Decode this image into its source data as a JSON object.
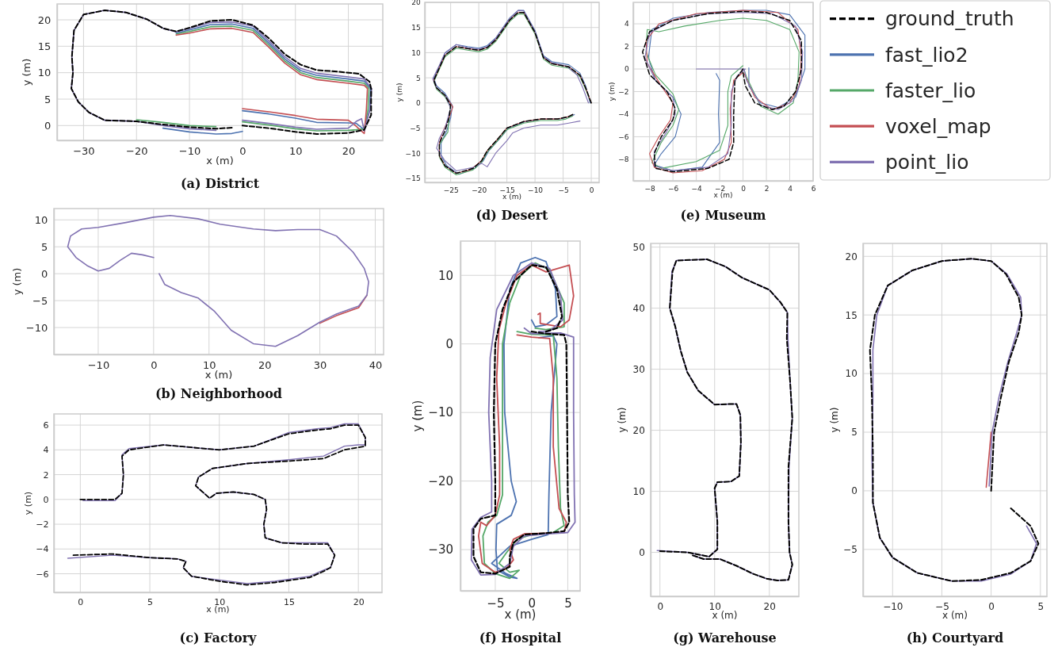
{
  "chart_data": [
    {
      "type": "line",
      "title": "(a) District",
      "xlabel": "x (m)",
      "ylabel": "y (m)",
      "xlim": [
        -35,
        26.5
      ],
      "ylim": [
        -2.8,
        23
      ],
      "xticks": [
        -30,
        -20,
        -10,
        0,
        10,
        20
      ],
      "yticks": [
        0,
        5,
        10,
        15,
        20
      ],
      "grid": true,
      "series": [
        {
          "color": "#000000",
          "line_style": "dashed",
          "x": [
            0,
            5,
            10,
            14,
            20,
            23,
            24.3,
            24.3,
            24,
            22,
            18,
            14,
            11,
            8,
            5,
            2,
            -2,
            -6,
            -10,
            -12.5,
            -15,
            -18,
            -22,
            -26,
            -30,
            -31.8,
            -32.2,
            -32,
            -32.3,
            -31,
            -29,
            -26,
            -20,
            -15,
            -10,
            -5,
            -2
          ],
          "values": [
            0,
            -0.5,
            -1.2,
            -1.6,
            -1.4,
            -0.8,
            2,
            7,
            8.3,
            9.8,
            10.2,
            10.5,
            11.5,
            13.5,
            16.5,
            19,
            20,
            19.8,
            18.5,
            17.8,
            18.4,
            20.1,
            21.4,
            21.8,
            21,
            18,
            13,
            10,
            7,
            4.5,
            2.5,
            1,
            0.8,
            0.2,
            -0.3,
            -0.6,
            -0.4
          ]
        },
        {
          "color": "#4c72b0",
          "x": [
            0,
            5,
            10,
            14,
            20,
            21.5,
            23,
            24,
            24.2,
            23,
            20,
            14,
            11,
            8,
            5,
            2,
            -2,
            -6,
            -10,
            -12.5,
            null,
            null,
            null,
            null,
            null,
            null,
            null,
            null,
            null,
            null,
            null,
            null,
            null,
            -15,
            -10,
            -5,
            -2,
            0
          ],
          "values": [
            2.8,
            2.2,
            1.4,
            0.6,
            0.5,
            0.4,
            -0.8,
            3,
            7,
            8.4,
            8.8,
            9.5,
            10.4,
            12.6,
            15.6,
            18.4,
            19.2,
            19.1,
            18.1,
            17.5,
            null,
            null,
            null,
            null,
            null,
            null,
            null,
            null,
            null,
            null,
            null,
            null,
            null,
            -0.5,
            -1.2,
            -1.6,
            -1.5,
            -1.1
          ]
        },
        {
          "color": "#55a868",
          "x": [
            0,
            5,
            10,
            14,
            20,
            21.5,
            23,
            23.7,
            23.9,
            23,
            20,
            14,
            11,
            8,
            5,
            2,
            -2,
            -6,
            -10,
            -12.5,
            null,
            null,
            null,
            null,
            null,
            null,
            null,
            null,
            null,
            null,
            null,
            null,
            -20,
            -15,
            -10,
            -5
          ],
          "values": [
            0.7,
            0.1,
            -0.6,
            -1,
            -0.9,
            -0.8,
            -0.6,
            3,
            7,
            8,
            8.4,
            9.1,
            10,
            12.2,
            15.2,
            18,
            18.8,
            18.7,
            17.8,
            17.3,
            null,
            null,
            null,
            null,
            null,
            null,
            null,
            null,
            null,
            null,
            null,
            null,
            1.1,
            0.6,
            0,
            -0.2
          ]
        },
        {
          "color": "#c44e52",
          "x": [
            0,
            5,
            10,
            14,
            20,
            21,
            23,
            23.4,
            23.6,
            23,
            20,
            14,
            11,
            8,
            5,
            2,
            -2,
            -6,
            -10,
            -12.5
          ],
          "values": [
            3.2,
            2.6,
            1.9,
            1.2,
            1,
            0.3,
            -1.5,
            3,
            7,
            7.6,
            8,
            8.7,
            9.6,
            11.8,
            14.8,
            17.6,
            18.4,
            18.3,
            17.5,
            17.1
          ]
        },
        {
          "color": "#8172b2",
          "x": [
            0,
            5,
            10,
            14,
            20,
            21.5,
            22.5,
            23,
            24.1,
            24.4,
            23,
            20,
            14,
            11,
            8,
            5,
            2,
            -2,
            -6,
            -10,
            -12.5,
            -15,
            -18,
            -22,
            -26,
            -30,
            -31.8,
            -32.2,
            -32,
            -32.3,
            -31,
            -29,
            -26,
            -20,
            -15,
            -10,
            -5
          ],
          "values": [
            1,
            0.4,
            -0.3,
            -0.7,
            -0.5,
            0.8,
            1.3,
            -1,
            3,
            7,
            8.8,
            9.2,
            9.9,
            10.8,
            13,
            16,
            18.8,
            19.6,
            19.5,
            18.4,
            17.7,
            18.4,
            20.1,
            21.4,
            21.8,
            21,
            18,
            13,
            10,
            7,
            4.5,
            2.5,
            1,
            0.8,
            0,
            -0.6,
            -0.9
          ]
        }
      ]
    },
    {
      "type": "line",
      "title": "(b) Neighborhood",
      "xlabel": "x (m)",
      "ylabel": "y (m)",
      "xlim": [
        -18,
        41.5
      ],
      "ylim": [
        -15,
        12.1
      ],
      "xticks": [
        -10,
        0,
        10,
        20,
        30,
        40
      ],
      "yticks": [
        -10,
        -5,
        0,
        5,
        10
      ],
      "grid": true,
      "series": [
        {
          "color": "#c44e52",
          "x": [
            38.5,
            37,
            33,
            30
          ],
          "values": [
            -4,
            -6.3,
            -7.8,
            -9.2
          ]
        },
        {
          "color": "#8172b2",
          "x": [
            0,
            -2,
            -4,
            -6,
            -8,
            -10,
            -12,
            -14,
            -15.5,
            -15,
            -13,
            -10,
            -5,
            0,
            3,
            8,
            12,
            18,
            22,
            26,
            30,
            33,
            36,
            38,
            38.8,
            38.5,
            37,
            33,
            30,
            26,
            22,
            18,
            14,
            11,
            8,
            5,
            2,
            1
          ],
          "values": [
            3,
            3.5,
            3.8,
            2.5,
            1,
            0.5,
            1.5,
            3,
            5,
            7,
            8.3,
            8.6,
            9.5,
            10.5,
            10.8,
            10.2,
            9.2,
            8.3,
            8,
            8.2,
            8.2,
            7,
            4,
            1,
            -1.5,
            -4,
            -6,
            -7.5,
            -9,
            -11.5,
            -13.5,
            -13,
            -10.5,
            -7,
            -4.5,
            -3.5,
            -2,
            0
          ]
        }
      ]
    },
    {
      "type": "line",
      "title": "(c) Factory",
      "xlabel": "x (m)",
      "ylabel": "y (m)",
      "xlim": [
        -1.9,
        21.7
      ],
      "ylim": [
        -7.5,
        6.9
      ],
      "xticks": [
        0,
        5,
        10,
        15,
        20
      ],
      "yticks": [
        -6,
        -4,
        -2,
        0,
        2,
        4,
        6
      ],
      "grid": true,
      "series": [
        {
          "color": "#000000",
          "line_style": "dashed",
          "x": [
            0,
            2.5,
            3,
            3.1,
            3,
            3.5,
            6,
            8,
            10,
            12.5,
            15,
            17,
            18,
            19,
            20,
            20.5,
            20.5,
            20,
            19,
            17.5,
            15,
            12,
            9.5,
            8.5,
            8.3,
            9.3,
            9.8,
            11,
            12.5,
            13.3,
            13.4,
            13.2,
            13.3,
            14.5,
            16,
            17.8,
            18.3,
            18,
            17.5,
            16.5,
            14,
            12,
            10,
            8,
            7.4,
            7.6,
            7,
            5,
            2.3,
            -0.5
          ],
          "values": [
            0,
            0,
            0.5,
            2,
            3.5,
            4,
            4.4,
            4.2,
            4,
            4.3,
            5.3,
            5.6,
            5.7,
            6,
            6,
            5,
            4.3,
            4.2,
            4,
            3.3,
            3.1,
            2.9,
            2.5,
            1.8,
            1.1,
            0.1,
            0.5,
            0.6,
            0.4,
            0,
            -0.8,
            -2,
            -3.1,
            -3.5,
            -3.6,
            -3.6,
            -4.5,
            -5.5,
            -5.8,
            -6.3,
            -6.7,
            -6.9,
            -6.6,
            -6.2,
            -5.5,
            -5,
            -4.8,
            -4.7,
            -4.4,
            -4.5
          ]
        },
        {
          "color": "#8172b2",
          "x": [
            0.2,
            2.5,
            3,
            3.1,
            3,
            3.5,
            6,
            8,
            10,
            12.5,
            15,
            17,
            18,
            19,
            20,
            20.5,
            20.5,
            20,
            19,
            17.5,
            15,
            12,
            9.5,
            8.5,
            8.3,
            9.3,
            9.8,
            11,
            12.5,
            13.3,
            13.4,
            13.2,
            13.3,
            14.5,
            16,
            17.8,
            18.3,
            18,
            17.5,
            16.5,
            14,
            12,
            10,
            8,
            7.4,
            7.6,
            7,
            5,
            2.3,
            -0.9
          ],
          "values": [
            -0.1,
            -0.1,
            0.5,
            2,
            3.6,
            4.1,
            4.4,
            4.2,
            4,
            4.3,
            5.4,
            5.7,
            5.8,
            6.1,
            6.1,
            5,
            4.4,
            4.4,
            4.3,
            3.5,
            3.2,
            2.9,
            2.5,
            1.8,
            1.1,
            0.1,
            0.5,
            0.6,
            0.4,
            0,
            -0.8,
            -2,
            -3.1,
            -3.5,
            -3.5,
            -3.5,
            -4.5,
            -5.5,
            -5.7,
            -6.2,
            -6.6,
            -6.8,
            -6.5,
            -6.2,
            -5.5,
            -5,
            -4.8,
            -4.7,
            -4.5,
            -4.75
          ]
        }
      ]
    },
    {
      "type": "line",
      "title": "(d) Desert",
      "xlabel": "x (m)",
      "ylabel": "y (m)",
      "xlim": [
        -29.6,
        1.4
      ],
      "ylim": [
        -15.8,
        20
      ],
      "xticks": [
        -25,
        -20,
        -15,
        -10,
        -5,
        0
      ],
      "yticks": [
        -15,
        -10,
        -5,
        0,
        5,
        10,
        15,
        20
      ],
      "grid": true,
      "series": [
        {
          "color": "#000000",
          "line_style": "dashed",
          "x": [
            0,
            -1,
            -2,
            -4,
            -7,
            -8.5,
            -10,
            -12,
            -13,
            -14.5,
            -17,
            -18.5,
            -20,
            -22,
            -24,
            -26,
            -27,
            -28,
            -27.5,
            -26,
            -25,
            -25.3,
            -26,
            -27,
            -27,
            -26,
            -24,
            -21,
            -19.5,
            -18.5,
            -16.5,
            -15,
            -12,
            -9,
            -6,
            -4,
            -3.3
          ],
          "values": [
            0,
            3,
            5.5,
            7.2,
            7.8,
            9,
            14,
            18,
            18,
            16.5,
            12.5,
            11,
            10.5,
            10.8,
            11.2,
            9.5,
            7,
            4.5,
            3,
            1.5,
            -0.5,
            -3,
            -5.5,
            -8,
            -10.5,
            -12.5,
            -14,
            -13,
            -11.5,
            -9.5,
            -7,
            -5,
            -3.7,
            -3.2,
            -3.2,
            -2.7,
            -2.3
          ]
        },
        {
          "color": "#4c72b0",
          "x": [
            -0.2,
            -1,
            -2,
            -4,
            -7,
            -8.5,
            -10,
            -12,
            -13,
            -14.5,
            -17,
            -18.5,
            -20,
            -22,
            -24,
            -26,
            -27,
            -28,
            -27.5,
            -26,
            -24.7,
            -25,
            -25.7,
            -26.7,
            -26.7,
            -25.7,
            -23.5,
            -20.7,
            -19.2,
            -18.2,
            -16.2,
            -14.7,
            -11.7,
            -8.7,
            -5.7,
            -3.7,
            -3
          ],
          "values": [
            0,
            3.4,
            5.9,
            7.6,
            8.2,
            9.4,
            14.4,
            18.4,
            18.4,
            16.9,
            12.9,
            11.4,
            10.9,
            11.2,
            11.6,
            9.9,
            7.4,
            4.9,
            3.4,
            1.9,
            -0.5,
            -3,
            -5.5,
            -8,
            -10.5,
            -12.5,
            -14.2,
            -13,
            -11.5,
            -9.5,
            -7,
            -5,
            -3.7,
            -3.2,
            -3.2,
            -2.7,
            -2.3
          ]
        },
        {
          "color": "#55a868",
          "x": [
            0,
            -1,
            -2,
            -4,
            -7,
            -8.5,
            -10,
            -12,
            -13,
            -14.5,
            -17,
            -18.5,
            -20,
            -22,
            -24,
            -26,
            -27,
            -28,
            -27.5,
            -26,
            -25,
            -25.3,
            -25.5,
            -27,
            -27,
            -26,
            -24,
            -21,
            -19.5,
            -18.5,
            -16.5,
            -15,
            -12,
            -9,
            -6,
            -4.5,
            -3.3
          ],
          "values": [
            0,
            2.7,
            5.2,
            6.9,
            7.5,
            8.7,
            13.7,
            17.7,
            17.7,
            16.2,
            12.2,
            10.7,
            10.2,
            10.5,
            10.9,
            9.2,
            6.7,
            4.2,
            2.7,
            1.2,
            -0.8,
            -3.3,
            -5.8,
            -8.3,
            -10.8,
            -12.8,
            -14.3,
            -13.3,
            -11.8,
            -9.8,
            -7.3,
            -5.3,
            -4,
            -3.5,
            -3.5,
            -3.2,
            -2.6
          ]
        },
        {
          "color": "#c44e52",
          "x": [
            0,
            -1,
            -2,
            -4,
            -7,
            -8.5,
            -10,
            -12,
            -13,
            -14.5,
            -17,
            -18.5,
            -20,
            -22,
            -24,
            -26,
            -27,
            -28,
            -27.5,
            -26,
            -24.6,
            -25.3,
            -26.5,
            -27,
            -27,
            -26,
            -24,
            -21.5,
            -19.5,
            -18.5,
            -16.5,
            -15,
            -12,
            -9,
            -6,
            -4,
            -3.3
          ],
          "values": [
            0,
            3,
            5.5,
            7.2,
            7.8,
            9,
            14,
            18,
            18,
            16.5,
            12.5,
            11,
            10.5,
            10.8,
            11.2,
            9.5,
            7,
            4.5,
            3,
            1.5,
            -0.8,
            -3,
            -6,
            -8,
            -10.5,
            -12.5,
            -14,
            -13.3,
            -11.5,
            -9.5,
            -7,
            -5,
            -3.7,
            -3.2,
            -3.2,
            -2.7,
            -2.3
          ]
        },
        {
          "color": "#8172b2",
          "x": [
            -0.5,
            -1.5,
            -2.5,
            -4.3,
            -7,
            -8.5,
            -10,
            -12,
            -13,
            -14.5,
            -17,
            -18.5,
            -20,
            -22,
            -24,
            -26,
            -27,
            -28.2,
            -27.5,
            -26,
            -25,
            -26,
            -27,
            -27.5,
            -26,
            -24,
            -21,
            -19.5,
            -18.5,
            -17,
            -15,
            -14,
            -12,
            -9,
            -6,
            -4,
            -2
          ],
          "values": [
            0,
            3,
            5.5,
            7.3,
            8,
            9.2,
            14.2,
            18.3,
            18.4,
            16.8,
            12.8,
            11.2,
            10.7,
            11,
            11.6,
            10,
            7.5,
            4.8,
            3,
            1.5,
            -1,
            -5,
            -7,
            -9,
            -11.5,
            -13.5,
            -12.8,
            -12,
            -12.7,
            -10,
            -7.5,
            -6,
            -5,
            -4.4,
            -4.4,
            -4,
            -3.6
          ]
        }
      ]
    },
    {
      "type": "line",
      "title": "(e) Museum",
      "xlabel": "x (m)",
      "ylabel": "y (m)",
      "xlim": [
        -9.4,
        6
      ],
      "ylim": [
        -9.9,
        5.9
      ],
      "xticks": [
        -8,
        -6,
        -4,
        -2,
        0,
        2,
        4,
        6
      ],
      "yticks": [
        -8,
        -6,
        -4,
        -2,
        0,
        2,
        4
      ],
      "grid": true,
      "legend": "right",
      "series": [
        {
          "name": "ground_truth",
          "color": "#000000",
          "line_style": "dashed",
          "x": [
            0,
            -0.7,
            -0.8,
            -0.8,
            -1.2,
            -3,
            -6,
            -7.5,
            -7.6,
            -7,
            -6,
            -5.8,
            -6.5,
            -8,
            -8.6,
            -8,
            -6,
            -3,
            0,
            2,
            4,
            5,
            5,
            4.5,
            3.5,
            2.5,
            1,
            0.2,
            0
          ],
          "values": [
            0,
            -1,
            -4,
            -6.5,
            -8,
            -8.8,
            -9.1,
            -8.8,
            -7.5,
            -6,
            -4.5,
            -3.5,
            -2,
            -0.5,
            1.5,
            3.3,
            4.3,
            4.9,
            5.1,
            5,
            4.3,
            2.5,
            0,
            -2,
            -3.3,
            -3.6,
            -3,
            -1.5,
            -0.3
          ]
        },
        {
          "name": "fast_lio2",
          "color": "#4c72b0",
          "x": [
            0.5,
            0.5,
            1.5,
            3,
            4.5,
            5.3,
            5.3,
            4,
            2,
            0,
            -3,
            -6,
            -7.8,
            -8.1,
            -7.5,
            -6,
            -5.3,
            -5.8,
            -7,
            -7.6,
            -6,
            -3.5,
            -2,
            -2.1,
            -2,
            -2.3
          ],
          "values": [
            0.1,
            -1.5,
            -3,
            -3.4,
            -2.5,
            0,
            3,
            4.8,
            5.2,
            5.2,
            5,
            4.5,
            3.5,
            1,
            -1,
            -2.5,
            -4,
            -6,
            -7.5,
            -8.5,
            -9,
            -8.7,
            -6.5,
            -4,
            -1,
            -0.4
          ]
        },
        {
          "name": "faster_lio",
          "color": "#55a868",
          "x": [
            0,
            -1,
            -1.3,
            -1.3,
            -2,
            -4,
            -7,
            -7.8,
            -7,
            -6,
            -5.5,
            -6,
            -7.5,
            -8.3,
            -8.2,
            -7.2,
            -5,
            -2,
            0,
            2,
            4,
            4.8,
            4.7,
            4.3,
            3,
            1.5,
            0.3,
            0.1
          ],
          "values": [
            0.3,
            -0.6,
            -2,
            -5,
            -7.2,
            -8.2,
            -8.8,
            -8.3,
            -6.5,
            -5,
            -3.6,
            -2.2,
            -0.5,
            1.5,
            3.5,
            3.3,
            3.8,
            4.3,
            4.5,
            4.3,
            3.5,
            1.5,
            -1,
            -3,
            -4,
            -3.3,
            -0.7,
            -0.1
          ]
        },
        {
          "name": "voxel_map",
          "color": "#c44e52",
          "x": [
            0,
            -0.8,
            -1.1,
            -1,
            -1.6,
            -3.5,
            -6,
            -7.6,
            -8,
            -7.2,
            -6.2,
            -6,
            -7,
            -8.2,
            -8.3,
            -7.2,
            -4,
            0,
            3,
            4.7,
            5,
            4.8,
            4,
            2.5,
            1,
            0.1
          ],
          "values": [
            -0.3,
            -1,
            -3.5,
            -6.5,
            -8,
            -9,
            -9.2,
            -8.7,
            -7.5,
            -6,
            -4.5,
            -3,
            -1.5,
            0.5,
            2.5,
            4,
            4.9,
            5.2,
            5,
            3.5,
            1,
            -1.5,
            -3,
            -3.6,
            -2.5,
            -0.4
          ]
        },
        {
          "name": "point_lio",
          "color": "#8172b2",
          "x": [
            -4,
            -1,
            0.2,
            -0.5,
            -1,
            -1,
            -1.3,
            -3,
            -6,
            -7.6,
            -7.6,
            -6.5,
            -5.8,
            -6,
            -7.5,
            -8.4,
            -8,
            -6,
            -3,
            0,
            2.5,
            4.5,
            5.1,
            5,
            4.3,
            3,
            1.5,
            0.3,
            0.1
          ],
          "values": [
            0,
            0,
            0,
            -0.6,
            -2,
            -5,
            -7.5,
            -8.7,
            -9,
            -8.6,
            -7.3,
            -5.5,
            -4,
            -2.5,
            -1,
            1,
            3.2,
            4.3,
            4.9,
            5,
            4.9,
            3.8,
            1.5,
            -1,
            -2.8,
            -3.6,
            -3.2,
            -1,
            0
          ]
        }
      ]
    },
    {
      "type": "line",
      "title": "(f) Hospital",
      "xlabel": "x (m)",
      "ylabel": "y (m)",
      "xlim": [
        -9.8,
        6.7
      ],
      "ylim": [
        -36,
        15
      ],
      "xticks": [
        -5,
        0,
        5
      ],
      "yticks": [
        -30,
        -20,
        -10,
        0,
        10
      ],
      "grid": true,
      "series": [
        {
          "color": "#000000",
          "line_style": "dashed",
          "x": [
            0,
            2,
            4.5,
            4.8,
            4.9,
            5,
            5.2,
            4.5,
            2,
            -1,
            -2.5,
            -3,
            -3,
            -5,
            -7,
            -8,
            -8,
            -7,
            -5,
            -5,
            -5.2,
            -5,
            -4,
            -2.5,
            0,
            2,
            3.5,
            4.2,
            3.5,
            2
          ],
          "values": [
            1.8,
            1.5,
            1.3,
            0,
            -10,
            -22,
            -26,
            -27.3,
            -27.6,
            -27.8,
            -29,
            -31,
            -32.5,
            -33.5,
            -33.3,
            -31,
            -27,
            -25.5,
            -25,
            -20,
            -10,
            0,
            5,
            9,
            11.5,
            11.2,
            8,
            4,
            2.3,
            1.8
          ]
        },
        {
          "color": "#4c72b0",
          "x": [
            0,
            0.5,
            2,
            3.5,
            3.3,
            2,
            0.5,
            -1.5,
            -3,
            -3.8,
            -3.7,
            -2.8,
            -2.1,
            -2.8,
            -4.8,
            -4.9,
            -4.7,
            -3,
            -2,
            -3.5,
            -5.5,
            -3,
            0,
            2.3,
            2.4,
            2.7,
            3.5,
            3,
            1
          ],
          "values": [
            3.5,
            2.5,
            2.8,
            4,
            8,
            12,
            12.6,
            11.8,
            8,
            0,
            -10,
            -20,
            -23,
            -25,
            -26.3,
            -30,
            -33,
            -34,
            -34.2,
            -33.5,
            -32,
            -29.5,
            -28.5,
            -27.8,
            -22,
            -10,
            0,
            1.2,
            0.9
          ]
        },
        {
          "color": "#55a868",
          "x": [
            -2,
            0,
            3,
            3.5,
            3.7,
            4,
            4.5,
            3,
            0,
            -2,
            -3.5,
            -4.5,
            -3,
            -1.7,
            -3,
            -5,
            -6.5,
            -6.7,
            -6,
            -4.8,
            -4,
            -4,
            -4,
            -3,
            -1.5,
            0.5,
            2.5,
            4.5,
            4.5,
            2,
            0.5
          ],
          "values": [
            1.8,
            1.4,
            1.3,
            -5,
            -15,
            -24,
            -26.5,
            -27.5,
            -27.8,
            -28.5,
            -30.5,
            -32,
            -33.3,
            -33,
            -34.2,
            -33.5,
            -32,
            -28,
            -26,
            -25,
            -22,
            -10,
            0,
            6,
            10,
            11.8,
            10.8,
            6,
            2.5,
            2.1,
            2.3
          ]
        },
        {
          "color": "#c44e52",
          "x": [
            -2,
            0,
            2.5,
            3,
            3,
            3.8,
            4.8,
            4.5,
            2,
            -1,
            -2.5,
            -3,
            -2.5,
            -3.5,
            -5,
            -6.8,
            -7.3,
            -7,
            -6.2,
            -5,
            -4.4,
            -4.4,
            -4.8,
            -4.5,
            -3.5,
            -2,
            0,
            2,
            5.2,
            5.8,
            5.2,
            4,
            1.2,
            1.2,
            0.9
          ],
          "values": [
            1.3,
            1,
            0.8,
            -5,
            -15,
            -24,
            -26,
            -27.5,
            -27.6,
            -27.7,
            -28.5,
            -30,
            -31.5,
            -32.8,
            -33.3,
            -32,
            -28,
            -26,
            -26.5,
            -25,
            -22,
            -15,
            -5,
            2,
            6,
            10,
            11.5,
            10.5,
            11.5,
            7,
            3.5,
            2.5,
            3,
            4.5,
            4.3
          ]
        },
        {
          "color": "#8172b2",
          "x": [
            -1,
            0,
            4,
            5.8,
            5.8,
            5.9,
            6,
            5,
            2,
            -1,
            -2.5,
            -3,
            -5,
            -7,
            -8.3,
            -8.2,
            -7,
            -5.5,
            -5.5,
            -5.9,
            -5.7,
            -4.8,
            -2.5,
            0,
            2.5,
            4,
            4.3,
            2.5,
            1
          ],
          "values": [
            2.3,
            1.5,
            1.6,
            1,
            -10,
            -22,
            -26,
            -27.5,
            -27.7,
            -28,
            -29.5,
            -32,
            -33.6,
            -33.7,
            -31.5,
            -27,
            -25.3,
            -24.5,
            -20,
            -10,
            -2,
            5,
            10,
            11.8,
            11,
            7,
            3.5,
            1.9,
            1.8
          ]
        }
      ]
    },
    {
      "type": "line",
      "title": "(g) Warehouse",
      "xlabel": "x (m)",
      "ylabel": "y (m)",
      "xlim": [
        -1.7,
        25.4
      ],
      "ylim": [
        -7.2,
        50.6
      ],
      "xticks": [
        0,
        10,
        20
      ],
      "yticks": [
        0,
        10,
        20,
        30,
        40,
        50
      ],
      "grid": true,
      "series": [
        {
          "color": "#000000",
          "line_style": "dashed",
          "x": [
            0,
            5,
            9,
            10.5,
            10.5,
            10,
            10.5,
            13,
            14.5,
            14.8,
            14.7,
            14,
            13,
            10,
            7,
            5,
            3.8,
            2.8,
            1.8,
            2.3,
            3,
            8.6,
            12,
            15,
            20,
            22,
            23.3,
            23.2,
            23.8,
            24.2,
            23.5,
            23.5,
            23.7,
            24.2,
            23.5,
            21.5,
            19.5,
            17,
            14,
            11,
            8,
            6
          ],
          "values": [
            0.2,
            0,
            -0.7,
            0.5,
            5,
            10.5,
            11.5,
            11.6,
            12.5,
            18,
            22.5,
            24.3,
            24.3,
            24.2,
            26.5,
            29.5,
            33,
            37,
            40,
            46,
            47.8,
            48,
            46.8,
            45,
            43,
            41,
            39.3,
            35,
            28,
            22,
            14,
            5,
            0,
            -2,
            -4.5,
            -4.6,
            -4.3,
            -3.5,
            -2.2,
            -1.1,
            -1.1,
            -0.5
          ]
        },
        {
          "color": "#8172b2",
          "x": [
            -0.5,
            5,
            9,
            10.5,
            10.5,
            10,
            10.5,
            13,
            14.5,
            14.8,
            14.7,
            14,
            13,
            10,
            7,
            5,
            3.8,
            2.8,
            1.8,
            2.2,
            3,
            8.6,
            12,
            15,
            20,
            22,
            23.3,
            23.4,
            23.8,
            24.2,
            23.6,
            23.5,
            23.7,
            24.2,
            23.5,
            21.5,
            19.5,
            17,
            14,
            11,
            8,
            6
          ],
          "values": [
            0.3,
            0,
            -0.7,
            0.5,
            5,
            10.5,
            11.5,
            11.6,
            12.5,
            18,
            22.5,
            24.3,
            24.3,
            24.2,
            26.5,
            29.5,
            33,
            37,
            40,
            46,
            47.8,
            48,
            46.8,
            45,
            43,
            41,
            39.3,
            35,
            28,
            22,
            14,
            5,
            0,
            -2,
            -4.5,
            -4.6,
            -4.3,
            -3.5,
            -2.2,
            -1.1,
            -1.1,
            -0.5
          ]
        }
      ]
    },
    {
      "type": "line",
      "title": "(h) Courtyard",
      "xlabel": "x (m)",
      "ylabel": "y (m)",
      "xlim": [
        -13,
        5.66
      ],
      "ylim": [
        -9,
        21.1
      ],
      "xticks": [
        -10,
        -5,
        0,
        5
      ],
      "yticks": [
        -5,
        0,
        5,
        10,
        15,
        20
      ],
      "grid": true,
      "series": [
        {
          "color": "#000000",
          "line_style": "dashed",
          "x": [
            0,
            0.3,
            1,
            1.8,
            2.8,
            3.1,
            2.8,
            1.5,
            0,
            -2,
            -5,
            -8,
            -10.5,
            -11.8,
            -12.3,
            -12.1,
            -12,
            -12,
            -11.3,
            -10,
            -7.5,
            -4,
            -1,
            2,
            4,
            4.8,
            4,
            2
          ],
          "values": [
            0,
            5,
            8,
            11,
            13.5,
            15,
            16.5,
            18.5,
            19.6,
            19.8,
            19.6,
            18.8,
            17.5,
            15,
            12,
            8,
            3,
            -1,
            -4,
            -5.7,
            -7,
            -7.7,
            -7.6,
            -7,
            -6,
            -4.5,
            -3,
            -1.5
          ]
        },
        {
          "color": "#c44e52",
          "x": [
            -0.5,
            0
          ],
          "values": [
            0.3,
            5
          ]
        },
        {
          "color": "#8172b2",
          "x": [
            -0.2,
            0.1,
            0.8,
            1.7,
            2.6,
            3.1,
            3,
            1.6,
            0,
            -2,
            -5,
            -8,
            -10.5,
            -11.6,
            -12,
            -12,
            -12.1,
            -12,
            -11.3,
            -10,
            -7.5,
            -4,
            -1,
            2,
            4,
            4.6,
            3.6
          ],
          "values": [
            0.4,
            5,
            8,
            11,
            13.5,
            15,
            16.5,
            18.5,
            19.6,
            19.8,
            19.6,
            18.8,
            17.5,
            15,
            12,
            8,
            3,
            -1,
            -4,
            -5.7,
            -7,
            -7.7,
            -7.7,
            -7.1,
            -6,
            -4.5,
            -3
          ]
        }
      ]
    }
  ]
}
